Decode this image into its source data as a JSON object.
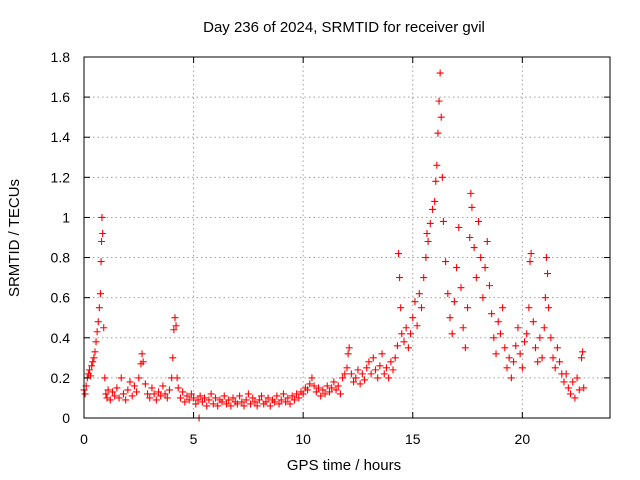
{
  "chart_data": {
    "type": "scatter",
    "title": "Day 236 of 2024, SRMTID for receiver gvil",
    "xlabel": "GPS time / hours",
    "ylabel": "SRMTID / TECUs",
    "xlim": [
      0,
      24
    ],
    "ylim": [
      0,
      1.8
    ],
    "xticks": [
      0,
      5,
      10,
      15,
      20
    ],
    "xtick_labels": [
      "0",
      "5",
      "10",
      "15",
      "20"
    ],
    "yticks": [
      0,
      0.2,
      0.4,
      0.6,
      0.8,
      1,
      1.2,
      1.4,
      1.6,
      1.8
    ],
    "ytick_labels": [
      "0",
      "0.2",
      "0.4",
      "0.6",
      "0.8",
      "1",
      "1.2",
      "1.4",
      "1.6",
      "1.8"
    ],
    "grid": true,
    "marker": "+",
    "series": [
      {
        "name": "SRMTID",
        "color": "#ff0000",
        "points": [
          [
            0.0,
            0.14
          ],
          [
            0.05,
            0.12
          ],
          [
            0.1,
            0.16
          ],
          [
            0.15,
            0.2
          ],
          [
            0.2,
            0.22
          ],
          [
            0.25,
            0.24
          ],
          [
            0.3,
            0.21
          ],
          [
            0.35,
            0.26
          ],
          [
            0.4,
            0.28
          ],
          [
            0.45,
            0.3
          ],
          [
            0.5,
            0.33
          ],
          [
            0.55,
            0.38
          ],
          [
            0.6,
            0.43
          ],
          [
            0.65,
            0.48
          ],
          [
            0.7,
            0.55
          ],
          [
            0.75,
            0.62
          ],
          [
            0.78,
            0.78
          ],
          [
            0.8,
            0.88
          ],
          [
            0.82,
            1.0
          ],
          [
            0.85,
            0.92
          ],
          [
            0.9,
            0.45
          ],
          [
            0.95,
            0.2
          ],
          [
            1.0,
            0.12
          ],
          [
            1.05,
            0.1
          ],
          [
            1.1,
            0.14
          ],
          [
            1.2,
            0.09
          ],
          [
            1.3,
            0.13
          ],
          [
            1.4,
            0.11
          ],
          [
            1.5,
            0.15
          ],
          [
            1.6,
            0.1
          ],
          [
            1.7,
            0.2
          ],
          [
            1.8,
            0.12
          ],
          [
            1.9,
            0.09
          ],
          [
            2.0,
            0.14
          ],
          [
            2.1,
            0.18
          ],
          [
            2.2,
            0.11
          ],
          [
            2.3,
            0.16
          ],
          [
            2.4,
            0.13
          ],
          [
            2.5,
            0.2
          ],
          [
            2.6,
            0.27
          ],
          [
            2.65,
            0.32
          ],
          [
            2.7,
            0.28
          ],
          [
            2.8,
            0.17
          ],
          [
            2.9,
            0.12
          ],
          [
            3.0,
            0.1
          ],
          [
            3.1,
            0.15
          ],
          [
            3.2,
            0.12
          ],
          [
            3.3,
            0.09
          ],
          [
            3.4,
            0.13
          ],
          [
            3.5,
            0.11
          ],
          [
            3.6,
            0.16
          ],
          [
            3.7,
            0.12
          ],
          [
            3.8,
            0.1
          ],
          [
            3.9,
            0.14
          ],
          [
            4.0,
            0.2
          ],
          [
            4.05,
            0.3
          ],
          [
            4.1,
            0.44
          ],
          [
            4.15,
            0.5
          ],
          [
            4.2,
            0.46
          ],
          [
            4.25,
            0.2
          ],
          [
            4.3,
            0.15
          ],
          [
            4.4,
            0.1
          ],
          [
            4.5,
            0.13
          ],
          [
            4.6,
            0.08
          ],
          [
            4.7,
            0.11
          ],
          [
            4.8,
            0.09
          ],
          [
            4.9,
            0.12
          ],
          [
            5.0,
            0.1
          ],
          [
            5.1,
            0.07
          ],
          [
            5.2,
            0.09
          ],
          [
            5.25,
            0.0
          ],
          [
            5.3,
            0.11
          ],
          [
            5.4,
            0.08
          ],
          [
            5.5,
            0.1
          ],
          [
            5.6,
            0.06
          ],
          [
            5.7,
            0.09
          ],
          [
            5.8,
            0.12
          ],
          [
            5.9,
            0.07
          ],
          [
            6.0,
            0.1
          ],
          [
            6.1,
            0.06
          ],
          [
            6.2,
            0.09
          ],
          [
            6.3,
            0.08
          ],
          [
            6.4,
            0.11
          ],
          [
            6.5,
            0.07
          ],
          [
            6.6,
            0.09
          ],
          [
            6.7,
            0.06
          ],
          [
            6.8,
            0.1
          ],
          [
            6.9,
            0.08
          ],
          [
            7.0,
            0.07
          ],
          [
            7.1,
            0.11
          ],
          [
            7.2,
            0.08
          ],
          [
            7.3,
            0.06
          ],
          [
            7.4,
            0.09
          ],
          [
            7.5,
            0.12
          ],
          [
            7.6,
            0.07
          ],
          [
            7.7,
            0.1
          ],
          [
            7.8,
            0.08
          ],
          [
            7.9,
            0.06
          ],
          [
            8.0,
            0.09
          ],
          [
            8.1,
            0.11
          ],
          [
            8.2,
            0.07
          ],
          [
            8.3,
            0.08
          ],
          [
            8.4,
            0.1
          ],
          [
            8.5,
            0.06
          ],
          [
            8.6,
            0.09
          ],
          [
            8.7,
            0.08
          ],
          [
            8.8,
            0.11
          ],
          [
            8.9,
            0.07
          ],
          [
            9.0,
            0.09
          ],
          [
            9.1,
            0.12
          ],
          [
            9.2,
            0.08
          ],
          [
            9.3,
            0.1
          ],
          [
            9.4,
            0.07
          ],
          [
            9.5,
            0.11
          ],
          [
            9.6,
            0.09
          ],
          [
            9.7,
            0.12
          ],
          [
            9.8,
            0.1
          ],
          [
            9.9,
            0.13
          ],
          [
            10.0,
            0.12
          ],
          [
            10.1,
            0.15
          ],
          [
            10.2,
            0.14
          ],
          [
            10.3,
            0.17
          ],
          [
            10.4,
            0.2
          ],
          [
            10.5,
            0.16
          ],
          [
            10.6,
            0.13
          ],
          [
            10.7,
            0.15
          ],
          [
            10.8,
            0.11
          ],
          [
            10.9,
            0.14
          ],
          [
            11.0,
            0.12
          ],
          [
            11.1,
            0.16
          ],
          [
            11.2,
            0.13
          ],
          [
            11.3,
            0.15
          ],
          [
            11.4,
            0.18
          ],
          [
            11.5,
            0.14
          ],
          [
            11.6,
            0.16
          ],
          [
            11.7,
            0.12
          ],
          [
            11.8,
            0.2
          ],
          [
            11.9,
            0.22
          ],
          [
            12.0,
            0.25
          ],
          [
            12.05,
            0.32
          ],
          [
            12.1,
            0.35
          ],
          [
            12.2,
            0.22
          ],
          [
            12.3,
            0.18
          ],
          [
            12.4,
            0.2
          ],
          [
            12.5,
            0.24
          ],
          [
            12.6,
            0.17
          ],
          [
            12.7,
            0.22
          ],
          [
            12.8,
            0.19
          ],
          [
            12.9,
            0.25
          ],
          [
            13.0,
            0.28
          ],
          [
            13.1,
            0.22
          ],
          [
            13.2,
            0.3
          ],
          [
            13.3,
            0.24
          ],
          [
            13.4,
            0.2
          ],
          [
            13.5,
            0.26
          ],
          [
            13.6,
            0.32
          ],
          [
            13.7,
            0.22
          ],
          [
            13.8,
            0.25
          ],
          [
            13.9,
            0.2
          ],
          [
            14.0,
            0.28
          ],
          [
            14.1,
            0.24
          ],
          [
            14.2,
            0.3
          ],
          [
            14.3,
            0.36
          ],
          [
            14.35,
            0.82
          ],
          [
            14.4,
            0.7
          ],
          [
            14.45,
            0.55
          ],
          [
            14.5,
            0.42
          ],
          [
            14.6,
            0.38
          ],
          [
            14.7,
            0.45
          ],
          [
            14.8,
            0.35
          ],
          [
            14.9,
            0.42
          ],
          [
            15.0,
            0.5
          ],
          [
            15.1,
            0.58
          ],
          [
            15.2,
            0.46
          ],
          [
            15.3,
            0.62
          ],
          [
            15.4,
            0.55
          ],
          [
            15.5,
            0.7
          ],
          [
            15.6,
            0.8
          ],
          [
            15.65,
            0.92
          ],
          [
            15.7,
            0.88
          ],
          [
            15.8,
            0.97
          ],
          [
            15.9,
            1.04
          ],
          [
            16.0,
            1.08
          ],
          [
            16.05,
            1.18
          ],
          [
            16.1,
            1.26
          ],
          [
            16.15,
            1.42
          ],
          [
            16.2,
            1.58
          ],
          [
            16.25,
            1.72
          ],
          [
            16.3,
            1.5
          ],
          [
            16.35,
            1.2
          ],
          [
            16.4,
            0.98
          ],
          [
            16.5,
            0.78
          ],
          [
            16.6,
            0.62
          ],
          [
            16.7,
            0.5
          ],
          [
            16.8,
            0.42
          ],
          [
            16.9,
            0.58
          ],
          [
            17.0,
            0.75
          ],
          [
            17.1,
            0.95
          ],
          [
            17.2,
            0.65
          ],
          [
            17.3,
            0.45
          ],
          [
            17.4,
            0.35
          ],
          [
            17.5,
            0.55
          ],
          [
            17.6,
            0.9
          ],
          [
            17.65,
            1.12
          ],
          [
            17.7,
            1.05
          ],
          [
            17.8,
            0.85
          ],
          [
            17.9,
            0.7
          ],
          [
            18.0,
            0.98
          ],
          [
            18.1,
            0.8
          ],
          [
            18.2,
            0.6
          ],
          [
            18.3,
            0.75
          ],
          [
            18.4,
            0.88
          ],
          [
            18.5,
            0.66
          ],
          [
            18.6,
            0.52
          ],
          [
            18.7,
            0.4
          ],
          [
            18.8,
            0.32
          ],
          [
            18.9,
            0.48
          ],
          [
            19.0,
            0.42
          ],
          [
            19.1,
            0.55
          ],
          [
            19.2,
            0.35
          ],
          [
            19.3,
            0.25
          ],
          [
            19.4,
            0.3
          ],
          [
            19.5,
            0.2
          ],
          [
            19.6,
            0.28
          ],
          [
            19.7,
            0.36
          ],
          [
            19.8,
            0.45
          ],
          [
            19.9,
            0.32
          ],
          [
            20.0,
            0.25
          ],
          [
            20.1,
            0.38
          ],
          [
            20.2,
            0.42
          ],
          [
            20.3,
            0.55
          ],
          [
            20.35,
            0.78
          ],
          [
            20.4,
            0.82
          ],
          [
            20.5,
            0.48
          ],
          [
            20.6,
            0.35
          ],
          [
            20.7,
            0.28
          ],
          [
            20.8,
            0.4
          ],
          [
            20.9,
            0.3
          ],
          [
            21.0,
            0.45
          ],
          [
            21.05,
            0.6
          ],
          [
            21.1,
            0.8
          ],
          [
            21.15,
            0.72
          ],
          [
            21.2,
            0.55
          ],
          [
            21.3,
            0.4
          ],
          [
            21.4,
            0.3
          ],
          [
            21.5,
            0.25
          ],
          [
            21.6,
            0.35
          ],
          [
            21.7,
            0.28
          ],
          [
            21.8,
            0.22
          ],
          [
            21.9,
            0.18
          ],
          [
            22.0,
            0.22
          ],
          [
            22.1,
            0.15
          ],
          [
            22.2,
            0.12
          ],
          [
            22.3,
            0.18
          ],
          [
            22.4,
            0.1
          ],
          [
            22.5,
            0.2
          ],
          [
            22.6,
            0.14
          ],
          [
            22.7,
            0.3
          ],
          [
            22.75,
            0.33
          ],
          [
            22.8,
            0.15
          ]
        ]
      }
    ]
  }
}
